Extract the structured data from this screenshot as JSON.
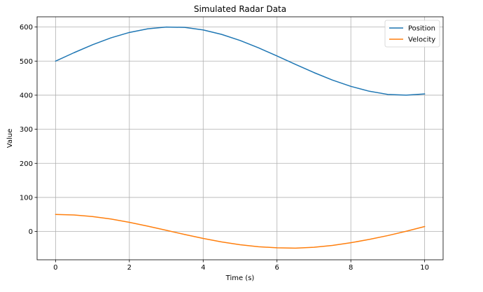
{
  "chart_data": {
    "type": "line",
    "title": "Simulated Radar Data",
    "xlabel": "Time (s)",
    "ylabel": "Value",
    "xlim": [
      -0.5,
      10.5
    ],
    "ylim": [
      -83,
      630
    ],
    "xticks": [
      0,
      2,
      4,
      6,
      8,
      10
    ],
    "yticks": [
      0,
      100,
      200,
      300,
      400,
      500,
      600
    ],
    "grid": true,
    "legend": {
      "placement": "top-right"
    },
    "x": [
      0,
      0.5,
      1,
      1.5,
      2,
      2.5,
      3,
      3.5,
      4,
      4.5,
      5,
      5.5,
      6,
      6.5,
      7,
      7.5,
      8,
      8.5,
      9,
      9.5,
      10
    ],
    "series": [
      {
        "name": "Position",
        "color": "#1f77b4",
        "values": [
          500,
          524.7,
          547.9,
          568.2,
          584.1,
          594.9,
          600.0,
          598.9,
          591.5,
          578.4,
          560.5,
          538.9,
          515.0,
          490.4,
          466.4,
          444.5,
          425.9,
          411.6,
          402.3,
          400.1,
          403.6
        ]
      },
      {
        "name": "Velocity",
        "color": "#ff7f0e",
        "values": [
          50,
          48.4,
          43.9,
          36.6,
          27.0,
          15.7,
          3.5,
          -8.8,
          -20.4,
          -30.6,
          -38.8,
          -44.7,
          -47.9,
          -48.9,
          -46.3,
          -40.8,
          -33.0,
          -23.2,
          -12.0,
          0.8,
          14.6
        ]
      }
    ]
  }
}
